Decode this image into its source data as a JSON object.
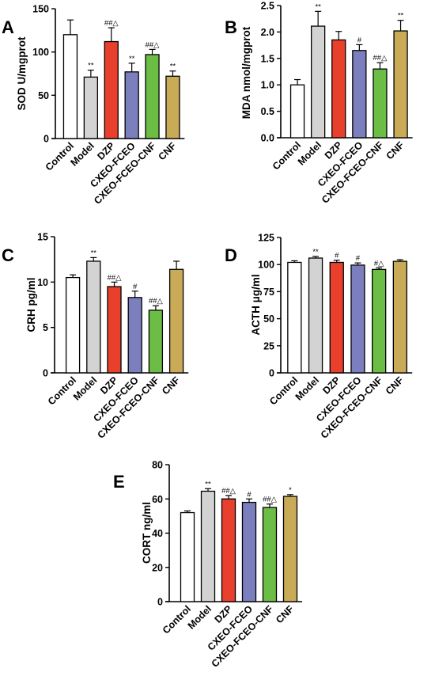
{
  "figure": {
    "categories": [
      "Control",
      "Model",
      "DZP",
      "CXEO-FCEO",
      "CXEO-FCEO-CNF",
      "CNF"
    ],
    "bar_colors": [
      "#ffffff",
      "#d3d3d3",
      "#e8402c",
      "#7b7fbd",
      "#6cbd45",
      "#c9aa57"
    ]
  },
  "chart_data": [
    {
      "panel": "A",
      "type": "bar",
      "ylabel": "SOD U/mgprot",
      "ylim": [
        0,
        150
      ],
      "yticks": [
        0,
        50,
        100,
        150
      ],
      "categories": [
        "Control",
        "Model",
        "DZP",
        "CXEO-FCEO",
        "CXEO-FCEO-CNF",
        "CNF"
      ],
      "values": [
        120,
        71,
        112,
        77,
        97,
        72
      ],
      "errors": [
        17,
        8,
        16,
        10,
        6,
        6
      ],
      "annotations": [
        "",
        "**",
        "##△",
        "**",
        "##△",
        "**"
      ]
    },
    {
      "panel": "B",
      "type": "bar",
      "ylabel": "MDA nmol/mgprot",
      "ylim": [
        0,
        2.5
      ],
      "yticks": [
        0.0,
        0.5,
        1.0,
        1.5,
        2.0,
        2.5
      ],
      "categories": [
        "Control",
        "Model",
        "DZP",
        "CXEO-FCEO",
        "CXEO-FCEO-CNF",
        "CNF"
      ],
      "values": [
        1.0,
        2.11,
        1.85,
        1.65,
        1.3,
        2.02
      ],
      "errors": [
        0.1,
        0.28,
        0.16,
        0.11,
        0.12,
        0.2
      ],
      "annotations": [
        "",
        "**",
        "",
        "#",
        "##△",
        "**"
      ]
    },
    {
      "panel": "C",
      "type": "bar",
      "ylabel": "CRH pg/ml",
      "ylim": [
        0,
        15
      ],
      "yticks": [
        0,
        5,
        10,
        15
      ],
      "categories": [
        "Control",
        "Model",
        "DZP",
        "CXEO-FCEO",
        "CXEO-FCEO-CNF",
        "CNF"
      ],
      "values": [
        10.5,
        12.3,
        9.5,
        8.3,
        6.9,
        11.4
      ],
      "errors": [
        0.3,
        0.4,
        0.5,
        0.7,
        0.5,
        0.9
      ],
      "annotations": [
        "",
        "**",
        "##△",
        "#",
        "##△",
        ""
      ]
    },
    {
      "panel": "D",
      "type": "bar",
      "ylabel": "ACTH μg/ml",
      "ylim": [
        0,
        125
      ],
      "yticks": [
        0,
        25,
        50,
        75,
        100,
        125
      ],
      "categories": [
        "Control",
        "Model",
        "DZP",
        "CXEO-FCEO",
        "CXEO-FCEO-CNF",
        "CNF"
      ],
      "values": [
        102,
        106,
        102,
        99.5,
        95.5,
        103
      ],
      "errors": [
        1.5,
        1.5,
        2,
        2,
        1.5,
        1.5
      ],
      "annotations": [
        "",
        "**",
        "#",
        "#",
        "#△",
        ""
      ]
    },
    {
      "panel": "E",
      "type": "bar",
      "ylabel": "CORT ng/ml",
      "ylim": [
        0,
        80
      ],
      "yticks": [
        0,
        20,
        40,
        60,
        80
      ],
      "categories": [
        "Control",
        "Model",
        "DZP",
        "CXEO-FCEO",
        "CXEO-FCEO-CNF",
        "CNF"
      ],
      "values": [
        52,
        64.5,
        60,
        58,
        55,
        61.5
      ],
      "errors": [
        1,
        1.5,
        2,
        2,
        2,
        1
      ],
      "annotations": [
        "",
        "**",
        "##△",
        "#",
        "##△",
        "*"
      ]
    }
  ]
}
